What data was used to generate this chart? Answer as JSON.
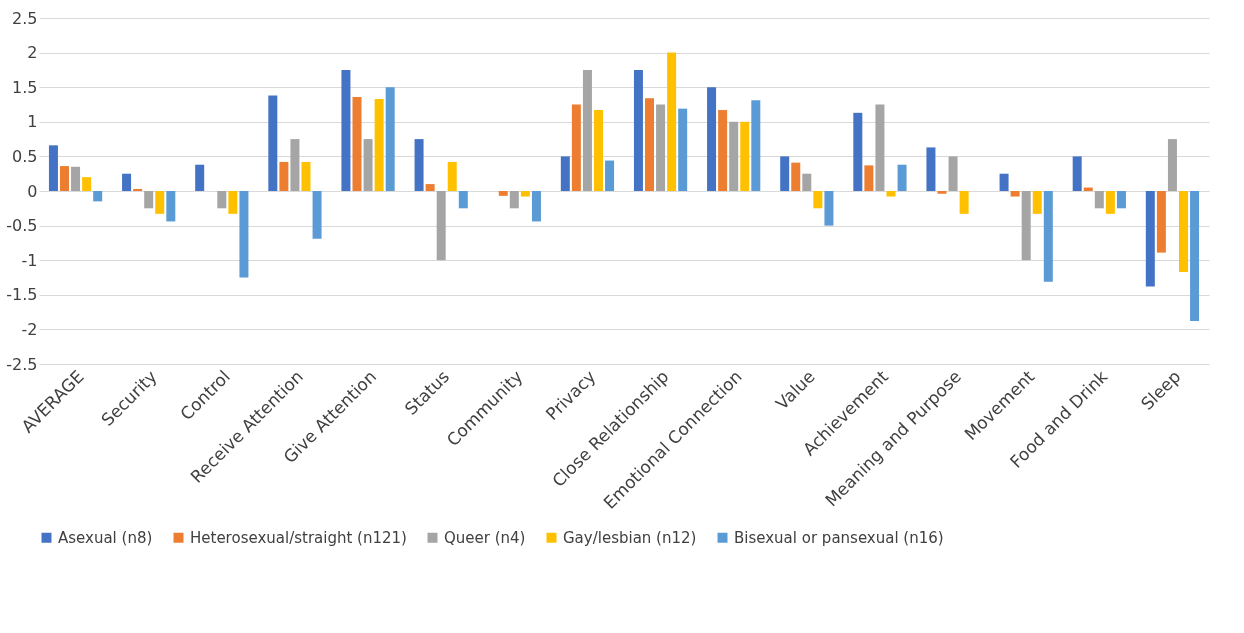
{
  "chart_data": {
    "type": "bar",
    "categories": [
      "AVERAGE",
      "Security",
      "Control",
      "Receive Attention",
      "Give Attention",
      "Status",
      "Community",
      "Privacy",
      "Close Relationship",
      "Emotional Connection",
      "Value",
      "Achievement",
      "Meaning and Purpose",
      "Movement",
      "Food and Drink",
      "Sleep"
    ],
    "series": [
      {
        "name": "Asexual (n8)",
        "color": "#4472c4",
        "values": [
          0.66,
          0.25,
          0.38,
          1.38,
          1.75,
          0.75,
          0,
          0.5,
          1.75,
          1.5,
          0.5,
          1.13,
          0.63,
          0.25,
          0.5,
          -1.38
        ]
      },
      {
        "name": "Heterosexual/straight (n121)",
        "color": "#ed7d31",
        "values": [
          0.36,
          0.03,
          0,
          0.42,
          1.36,
          0.1,
          -0.07,
          1.25,
          1.34,
          1.17,
          0.41,
          0.37,
          -0.04,
          -0.08,
          0.05,
          -0.89
        ]
      },
      {
        "name": "Queer (n4)",
        "color": "#a5a5a5",
        "values": [
          0.35,
          -0.25,
          -0.25,
          0.75,
          0.75,
          -1.0,
          -0.25,
          1.75,
          1.25,
          1.0,
          0.25,
          1.25,
          0.5,
          -1.0,
          -0.25,
          0.75
        ]
      },
      {
        "name": "Gay/lesbian (n12)",
        "color": "#ffc000",
        "values": [
          0.2,
          -0.33,
          -0.33,
          0.42,
          1.33,
          0.42,
          -0.08,
          1.17,
          2.0,
          1.0,
          -0.25,
          -0.08,
          -0.33,
          -0.33,
          -0.33,
          -1.17
        ]
      },
      {
        "name": "Bisexual or pansexual (n16)",
        "color": "#5b9bd5",
        "values": [
          -0.15,
          -0.44,
          -1.25,
          -0.69,
          1.5,
          -0.25,
          -0.44,
          0.44,
          1.19,
          1.31,
          -0.5,
          0.38,
          0,
          -1.31,
          -0.25,
          -1.88
        ]
      }
    ],
    "ylim": [
      -2.5,
      2.5
    ],
    "yticks": [
      -2.5,
      -2,
      -1.5,
      -1,
      -0.5,
      0,
      0.5,
      1,
      1.5,
      2,
      2.5
    ],
    "grid": "y",
    "legend": "bottom"
  }
}
